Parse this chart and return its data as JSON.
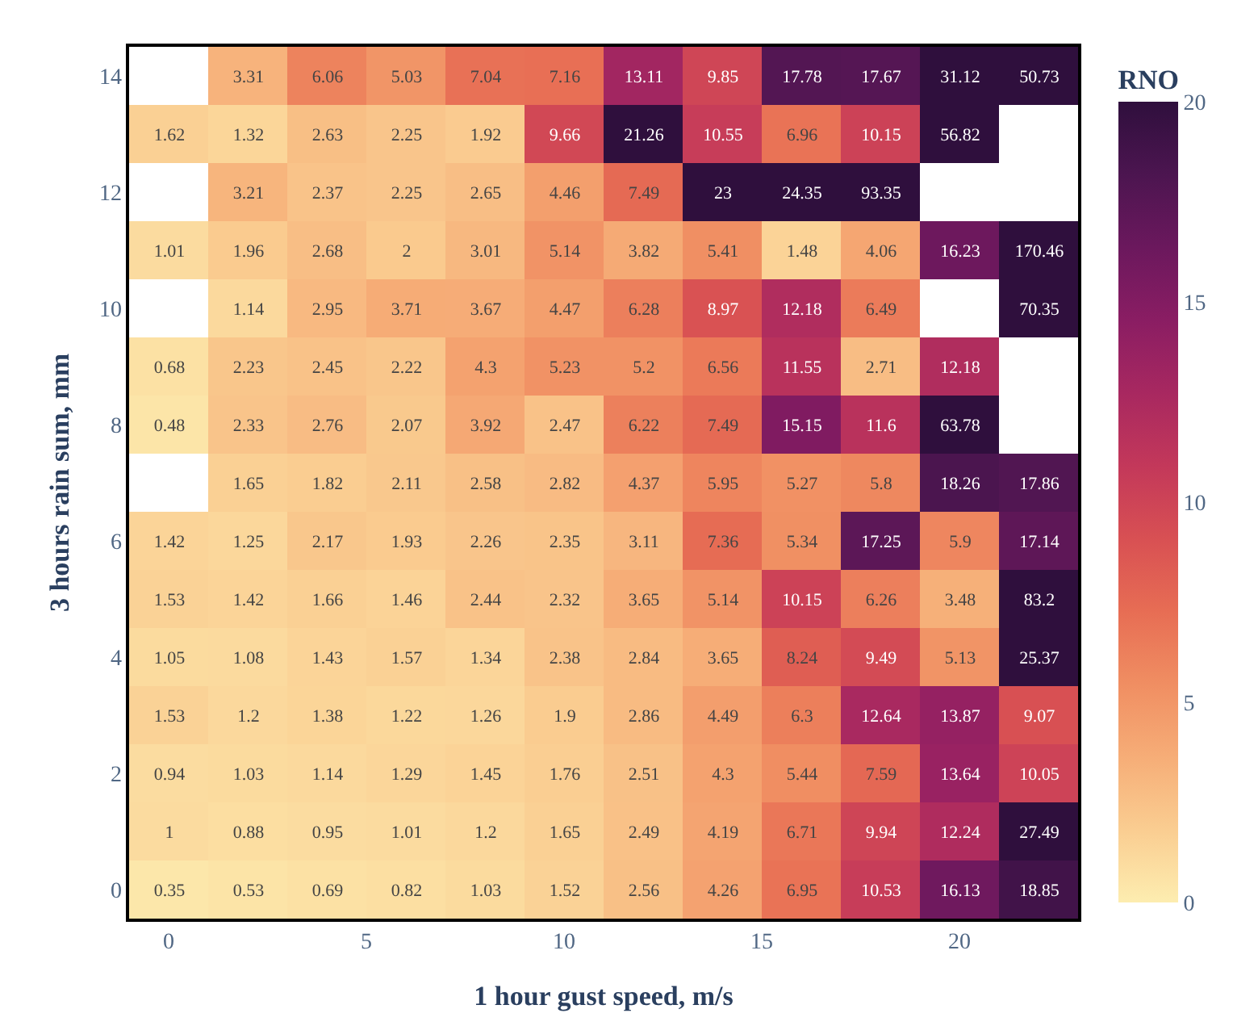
{
  "chart_data": {
    "type": "heatmap",
    "xlabel": "1 hour gust speed, m/s",
    "ylabel": "3 hours rain sum, mm",
    "clabel": "RNO",
    "x": [
      0,
      2,
      4,
      6,
      8,
      10,
      12,
      14,
      16,
      18,
      20,
      22
    ],
    "y_categories": [
      "14",
      null,
      "12",
      null,
      "10",
      null,
      "8",
      null,
      "6",
      null,
      "4",
      null,
      "2",
      null,
      "0"
    ],
    "cells": [
      [
        null,
        3.31,
        6.06,
        5.03,
        7.04,
        7.16,
        13.11,
        9.85,
        17.78,
        17.67,
        31.12,
        50.73
      ],
      [
        1.62,
        1.32,
        2.63,
        2.25,
        1.92,
        9.66,
        21.26,
        10.55,
        6.96,
        10.15,
        56.82,
        null
      ],
      [
        null,
        3.21,
        2.37,
        2.25,
        2.65,
        4.46,
        7.49,
        23,
        24.35,
        93.35,
        null,
        null
      ],
      [
        1.01,
        1.96,
        2.68,
        2,
        3.01,
        5.14,
        3.82,
        5.41,
        1.48,
        4.06,
        16.23,
        170.46
      ],
      [
        null,
        1.14,
        2.95,
        3.71,
        3.67,
        4.47,
        6.28,
        8.97,
        12.18,
        6.49,
        null,
        70.35
      ],
      [
        0.68,
        2.23,
        2.45,
        2.22,
        4.3,
        5.23,
        5.2,
        6.56,
        11.55,
        2.71,
        12.18,
        null
      ],
      [
        0.48,
        2.33,
        2.76,
        2.07,
        3.92,
        2.47,
        6.22,
        7.49,
        15.15,
        11.6,
        63.78,
        null
      ],
      [
        null,
        1.65,
        1.82,
        2.11,
        2.58,
        2.82,
        4.37,
        5.95,
        5.27,
        5.8,
        18.26,
        17.86
      ],
      [
        1.42,
        1.25,
        2.17,
        1.93,
        2.26,
        2.35,
        3.11,
        7.36,
        5.34,
        17.25,
        5.9,
        17.14
      ],
      [
        1.53,
        1.42,
        1.66,
        1.46,
        2.44,
        2.32,
        3.65,
        5.14,
        10.15,
        6.26,
        3.48,
        83.2
      ],
      [
        1.05,
        1.08,
        1.43,
        1.57,
        1.34,
        2.38,
        2.84,
        3.65,
        8.24,
        9.49,
        5.13,
        25.37
      ],
      [
        1.53,
        1.2,
        1.38,
        1.22,
        1.26,
        1.9,
        2.86,
        4.49,
        6.3,
        12.64,
        13.87,
        9.07
      ],
      [
        0.94,
        1.03,
        1.14,
        1.29,
        1.45,
        1.76,
        2.51,
        4.3,
        5.44,
        7.59,
        13.64,
        10.05
      ],
      [
        1,
        0.88,
        0.95,
        1.01,
        1.2,
        1.65,
        2.49,
        4.19,
        6.71,
        9.94,
        12.24,
        27.49
      ],
      [
        0.35,
        0.53,
        0.69,
        0.82,
        1.03,
        1.52,
        2.56,
        4.26,
        6.95,
        10.53,
        16.13,
        18.85
      ]
    ],
    "data_labels": true,
    "clim": [
      0,
      20
    ],
    "cticks": [
      0,
      5,
      10,
      15,
      20
    ],
    "xlim": [
      -1,
      23
    ],
    "xticks": [
      0,
      5,
      10,
      15,
      20
    ]
  }
}
